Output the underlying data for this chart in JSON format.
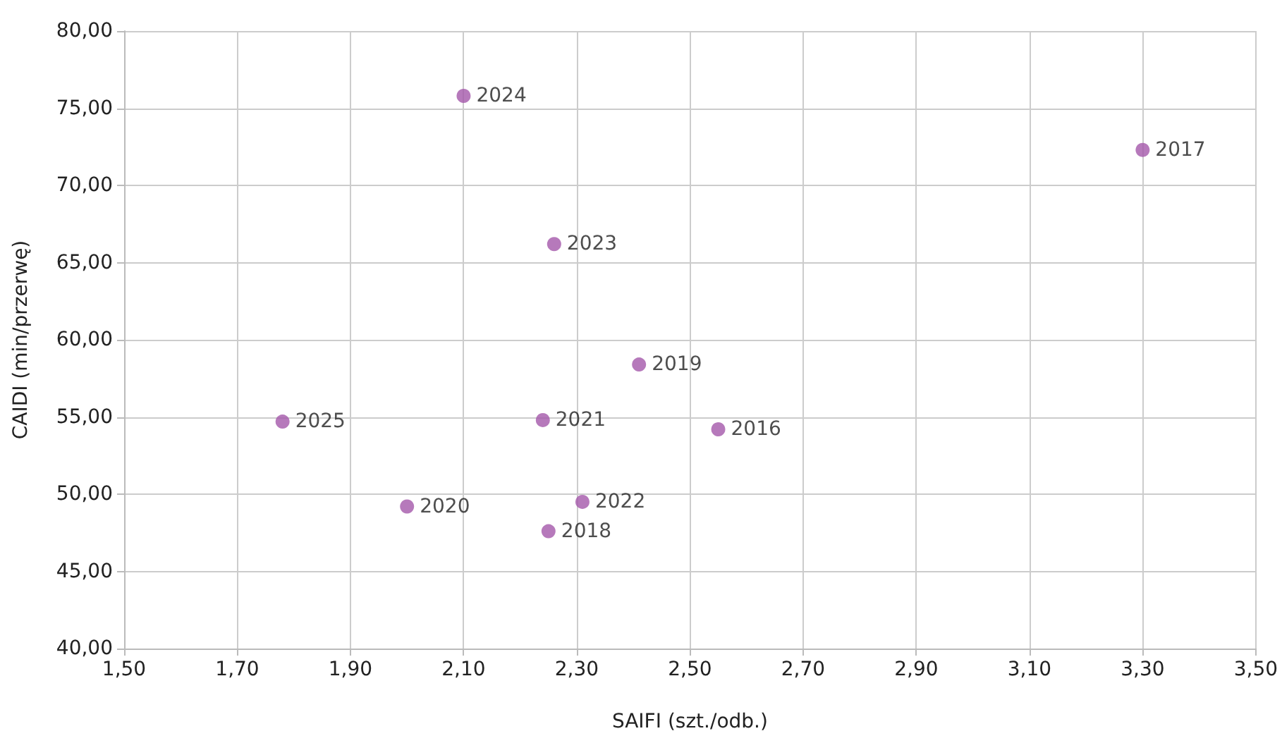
{
  "chart_data": {
    "type": "scatter",
    "xlabel": "SAIFI (szt./odb.)",
    "ylabel": "CAIDI (min/przerwę)",
    "marker": "circle",
    "grid": true,
    "legend": false,
    "xlim": [
      1.5,
      3.5
    ],
    "ylim": [
      40,
      80
    ],
    "xticks": [
      {
        "value": 1.5,
        "label": "1,50"
      },
      {
        "value": 1.7,
        "label": "1,70"
      },
      {
        "value": 1.9,
        "label": "1,90"
      },
      {
        "value": 2.1,
        "label": "2,10"
      },
      {
        "value": 2.3,
        "label": "2,30"
      },
      {
        "value": 2.5,
        "label": "2,50"
      },
      {
        "value": 2.7,
        "label": "2,70"
      },
      {
        "value": 2.9,
        "label": "2,90"
      },
      {
        "value": 3.1,
        "label": "3,10"
      },
      {
        "value": 3.3,
        "label": "3,30"
      },
      {
        "value": 3.5,
        "label": "3,50"
      }
    ],
    "yticks": [
      {
        "value": 40,
        "label": "40,00"
      },
      {
        "value": 45,
        "label": "45,00"
      },
      {
        "value": 50,
        "label": "50,00"
      },
      {
        "value": 55,
        "label": "55,00"
      },
      {
        "value": 60,
        "label": "60,00"
      },
      {
        "value": 65,
        "label": "65,00"
      },
      {
        "value": 70,
        "label": "70,00"
      },
      {
        "value": 75,
        "label": "75,00"
      },
      {
        "value": 80,
        "label": "80,00"
      }
    ],
    "series": [
      {
        "name": "2016",
        "color": "#a458aa",
        "x": [
          2.55
        ],
        "values": [
          54.2
        ]
      },
      {
        "name": "2017",
        "color": "#a458aa",
        "x": [
          3.3
        ],
        "values": [
          72.3
        ]
      },
      {
        "name": "2018",
        "color": "#a458aa",
        "x": [
          2.25
        ],
        "values": [
          47.6
        ]
      },
      {
        "name": "2019",
        "color": "#a458aa",
        "x": [
          2.41
        ],
        "values": [
          58.4
        ]
      },
      {
        "name": "2020",
        "color": "#a458aa",
        "x": [
          2.0
        ],
        "values": [
          49.2
        ]
      },
      {
        "name": "2021",
        "color": "#a458aa",
        "x": [
          2.24
        ],
        "values": [
          54.8
        ]
      },
      {
        "name": "2022",
        "color": "#a458aa",
        "x": [
          2.31
        ],
        "values": [
          49.5
        ]
      },
      {
        "name": "2023",
        "color": "#a458aa",
        "x": [
          2.26
        ],
        "values": [
          66.2
        ]
      },
      {
        "name": "2024",
        "color": "#a458aa",
        "x": [
          2.1
        ],
        "values": [
          75.8
        ]
      },
      {
        "name": "2025",
        "color": "#a458aa",
        "x": [
          1.78
        ],
        "values": [
          54.7
        ]
      }
    ]
  }
}
